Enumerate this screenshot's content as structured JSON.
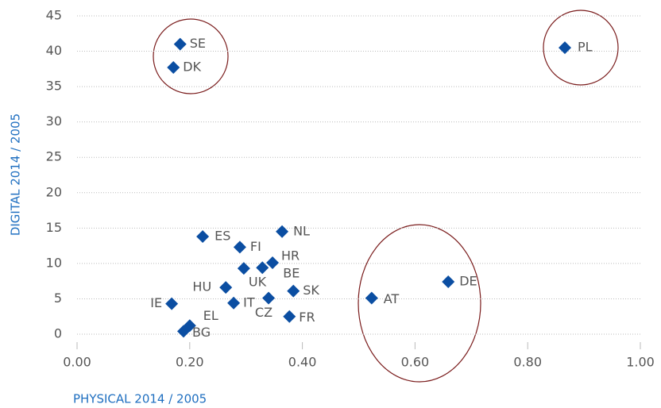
{
  "chart_data": {
    "type": "scatter",
    "x_label": "PHYSICAL 2014 / 2005",
    "y_label": "DIGITAL 2014 / 2005",
    "color": "#0b4ea2",
    "grid": true,
    "xlim": [
      0,
      1
    ],
    "ylim": [
      0,
      45
    ],
    "xticks": [
      {
        "value": 0,
        "label": "0.00"
      },
      {
        "value": 0.2,
        "label": "0.20"
      },
      {
        "value": 0.4,
        "label": "0.40"
      },
      {
        "value": 0.6,
        "label": "0.60"
      },
      {
        "value": 0.8,
        "label": "0.80"
      },
      {
        "value": 1,
        "label": "1.00"
      }
    ],
    "yticks": [
      0,
      5,
      10,
      15,
      20,
      25,
      30,
      35,
      40,
      45
    ],
    "labels": [
      "SE",
      "DK",
      "PL",
      "ES",
      "NL",
      "FI",
      "HR",
      "UK",
      "BE",
      "HU",
      "SK",
      "DE",
      "AT",
      "IT",
      "CZ",
      "IE",
      "FR",
      "EL",
      "BG"
    ],
    "x": [
      0.183,
      0.171,
      0.866,
      0.223,
      0.364,
      0.289,
      0.347,
      0.296,
      0.329,
      0.264,
      0.384,
      0.659,
      0.523,
      0.278,
      0.34,
      0.168,
      0.377,
      0.2,
      0.189
    ],
    "values": [
      41.0,
      37.7,
      40.5,
      13.8,
      14.5,
      12.3,
      10.1,
      9.3,
      9.4,
      6.6,
      6.1,
      7.4,
      5.1,
      4.4,
      5.1,
      4.3,
      2.5,
      1.2,
      0.4
    ]
  }
}
